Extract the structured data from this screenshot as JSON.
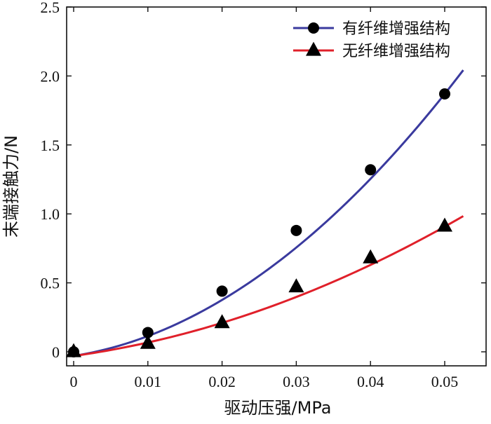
{
  "chart_data": {
    "type": "scatter",
    "xlabel": "驱动压强/MPa",
    "ylabel": "末端接触力/N",
    "xlim": [
      -0.001,
      0.0535
    ],
    "ylim": [
      -0.05,
      2.5
    ],
    "x_ticks": [
      0,
      0.01,
      0.02,
      0.03,
      0.04,
      0.05
    ],
    "x_tick_labels": [
      "0",
      "0.01",
      "0.02",
      "0.03",
      "0.04",
      "0.05"
    ],
    "y_ticks": [
      0,
      0.5,
      1.0,
      1.5,
      2.0,
      2.5
    ],
    "y_tick_labels": [
      "0",
      "0.5",
      "1.0",
      "1.5",
      "2.0",
      "2.5"
    ],
    "legend_position": "top-right",
    "series": [
      {
        "name": "有纤维增强结构",
        "marker": "circle",
        "color": "#3a3a9e",
        "x": [
          0,
          0.01,
          0.02,
          0.03,
          0.04,
          0.05
        ],
        "y": [
          0.0,
          0.14,
          0.44,
          0.88,
          1.32,
          1.87
        ],
        "fit": {
          "x": [
            0,
            0.0525
          ],
          "coeffs": [
            -0.03,
            8.5,
            590
          ]
        }
      },
      {
        "name": "无纤维增强结构",
        "marker": "triangle",
        "color": "#e0202a",
        "x": [
          0,
          0.01,
          0.02,
          0.03,
          0.04,
          0.05
        ],
        "y": [
          0.0,
          0.06,
          0.21,
          0.47,
          0.68,
          0.91
        ],
        "fit": {
          "x": [
            0,
            0.0525
          ],
          "coeffs": [
            -0.03,
            7.5,
            225
          ]
        }
      }
    ]
  }
}
